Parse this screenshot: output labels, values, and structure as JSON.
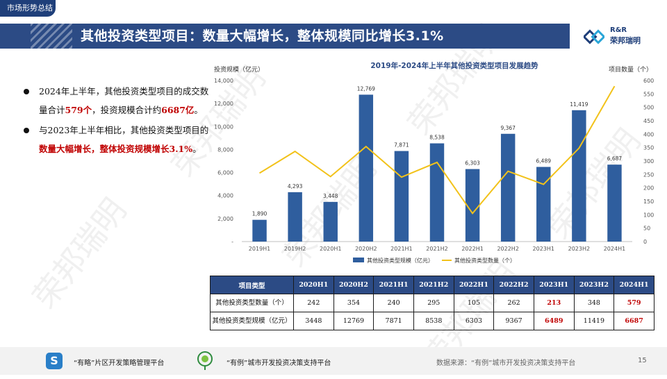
{
  "section_tag": "市场形势总结",
  "title": "其他投资类型项目：数量大幅增长，整体规模同比增长3.1%",
  "logo": {
    "en": "R&R",
    "cn": "荣邦瑞明",
    "icon": "rr-logo-icon"
  },
  "bullets": [
    {
      "parts": [
        {
          "text": "2024年上半年，其他投资类型项目的成交数量合计",
          "highlight": false
        },
        {
          "text": "579个",
          "highlight": true
        },
        {
          "text": "，投资规模合计约",
          "highlight": false
        },
        {
          "text": "6687亿",
          "highlight": true
        },
        {
          "text": "。",
          "highlight": false
        }
      ]
    },
    {
      "parts": [
        {
          "text": "与2023年上半年相比，其他投资类型项目的",
          "highlight": false
        },
        {
          "text": "数量大幅增长，整体投资规模增长3.1%",
          "highlight": true
        },
        {
          "text": "。",
          "highlight": false
        }
      ]
    }
  ],
  "chart_data": {
    "type": "bar",
    "title": "2019年-2024年上半年其他投资类型项目发展趋势",
    "categories": [
      "2019H1",
      "2019H2",
      "2020H1",
      "2020H2",
      "2021H1",
      "2021H2",
      "2022H1",
      "2022H2",
      "2023H1",
      "2023H2",
      "2024H1"
    ],
    "series": [
      {
        "name": "其他投资类型规模（亿元）",
        "type": "bar",
        "axis": "left",
        "color": "#2f5e9e",
        "values": [
          1890,
          4293,
          3448,
          12769,
          7871,
          8538,
          6303,
          9367,
          6489,
          11419,
          6687
        ],
        "value_labels": [
          "1,890",
          "4,293",
          "3,448",
          "12,769",
          "7,871",
          "8,538",
          "6,303",
          "9,367",
          "6,489",
          "11,419",
          "6,687"
        ]
      },
      {
        "name": "其他投资类型数量（个）",
        "type": "line",
        "axis": "right",
        "color": "#f2c21a",
        "values": [
          255,
          336,
          242,
          354,
          240,
          295,
          105,
          262,
          213,
          348,
          579
        ]
      }
    ],
    "ylabel_left": "投资规模（亿元）",
    "ylabel_right": "项目数量（个）",
    "ylim_left": [
      0,
      14000
    ],
    "ylim_right": [
      0,
      600
    ],
    "yticks_left": [
      "-",
      "2,000",
      "4,000",
      "6,000",
      "8,000",
      "10,000",
      "12,000",
      "14,000"
    ],
    "yticks_right": [
      "0",
      "50",
      "100",
      "150",
      "200",
      "250",
      "300",
      "350",
      "400",
      "450",
      "500",
      "550",
      "600"
    ],
    "legend_position": "bottom",
    "grid": false
  },
  "table": {
    "header_label": "项目类型",
    "columns": [
      "2020H1",
      "2020H2",
      "2021H1",
      "2021H2",
      "2022H1",
      "2022H2",
      "2023H1",
      "2023H2",
      "2024H1"
    ],
    "rows": [
      {
        "label": "其他投资类型数量（个）",
        "values": [
          "242",
          "354",
          "240",
          "295",
          "105",
          "262",
          "213",
          "348",
          "579"
        ]
      },
      {
        "label": "其他投资类型规模（亿元）",
        "values": [
          "3448",
          "12769",
          "7871",
          "8538",
          "6303",
          "9367",
          "6489",
          "11419",
          "6687"
        ]
      }
    ],
    "highlight_columns": [
      "2023H1",
      "2024H1"
    ]
  },
  "footer": {
    "platform1": "“有略”片区开发策略管理平台",
    "platform2": "“有例”城市开发投资决策支持平台",
    "source": "数据来源：“有例”城市开发投资决策支持平台",
    "page": "15",
    "icon1": "youlue-s-icon",
    "icon2": "youli-pin-icon"
  },
  "watermark": "荣邦瑞明"
}
